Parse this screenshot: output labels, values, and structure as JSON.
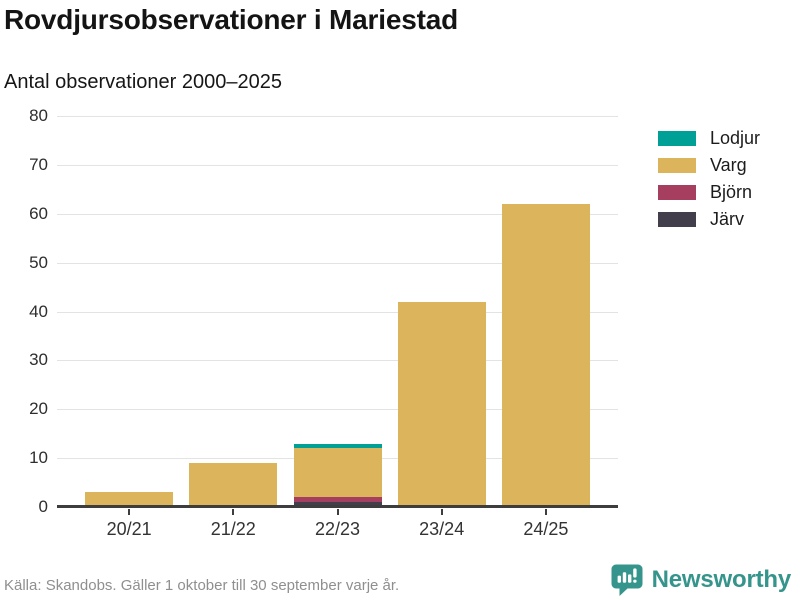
{
  "header": {
    "title": "Rovdjursobservationer i Mariestad",
    "subtitle": "Antal observationer 2000–2025"
  },
  "chart_data": {
    "type": "bar",
    "stacked": true,
    "title": "Rovdjursobservationer i Mariestad",
    "subtitle": "Antal observationer 2000–2025",
    "categories": [
      "20/21",
      "21/22",
      "22/23",
      "23/24",
      "24/25"
    ],
    "series": [
      {
        "name": "Lodjur",
        "color": "#00A096",
        "values": [
          0,
          0,
          1,
          0,
          0
        ]
      },
      {
        "name": "Varg",
        "color": "#DCB45C",
        "values": [
          3,
          9,
          10,
          42,
          62
        ]
      },
      {
        "name": "Björn",
        "color": "#A63E60",
        "values": [
          0,
          0,
          1,
          0,
          0
        ]
      },
      {
        "name": "Järv",
        "color": "#423E4C",
        "values": [
          0,
          0,
          1,
          0,
          0
        ]
      }
    ],
    "totals": [
      3,
      9,
      13,
      42,
      62
    ],
    "xlabel": "",
    "ylabel": "",
    "ylim": [
      0,
      80
    ],
    "ytick_step": 10,
    "grid": true,
    "legend_position": "right"
  },
  "footer": {
    "source": "Källa: Skandobs. Gäller 1 oktober till 30 september varje år."
  },
  "brand": {
    "name": "Newsworthy",
    "color": "#35948B"
  },
  "colors": {
    "axis": "#3d3d3d",
    "gridline": "#e3e3e3",
    "footer_text": "#8f8f8f"
  }
}
